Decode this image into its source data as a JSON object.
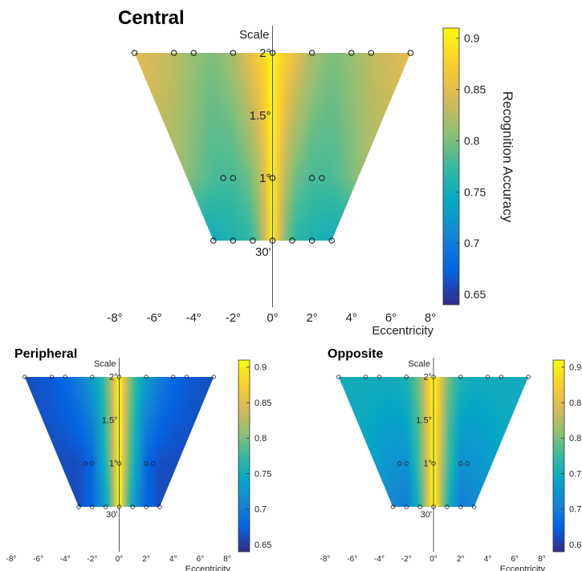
{
  "colors": {
    "colormap": [
      "#352a87",
      "#0363e1",
      "#1485d4",
      "#06a7c6",
      "#38b99e",
      "#92bf73",
      "#d9ba56",
      "#fcce2e",
      "#f9fb0e"
    ],
    "outline_marker": "#222222",
    "axis_line": "#555555"
  },
  "chart_data": [
    {
      "type": "heatmap",
      "title": "Central",
      "xlabel": "Eccentricity",
      "ylabel": "Scale",
      "colorbar_label": "Recognition Accuracy",
      "clim": [
        0.64,
        0.91
      ],
      "colorbar_ticks": [
        "0.65",
        "0.7",
        "0.75",
        "0.8",
        "0.85",
        "0.9"
      ],
      "x_ticks": [
        "-8°",
        "-6°",
        "-4°",
        "-2°",
        "0°",
        "2°",
        "4°",
        "6°",
        "8°"
      ],
      "y_ticks": [
        "30'",
        "1°",
        "1.5°",
        "2°"
      ],
      "xlim": [
        -8,
        8
      ],
      "scale_levels": [
        {
          "label": "2°",
          "points": [
            -7,
            -5,
            -4,
            -2,
            0,
            2,
            4,
            5,
            7
          ]
        },
        {
          "label": "1°",
          "points": [
            -2.5,
            -2,
            0,
            2,
            2.5
          ]
        },
        {
          "label": "30'",
          "points": [
            -3,
            -2,
            -1,
            0,
            1,
            2,
            3
          ]
        }
      ],
      "accuracy_profile": {
        "eccentricity": [
          0,
          0.5,
          1,
          2,
          3,
          4,
          5,
          7
        ],
        "at_2deg": [
          0.91,
          0.88,
          0.86,
          0.82,
          0.8,
          0.81,
          0.83,
          0.85
        ],
        "at_1deg": [
          0.9,
          0.84,
          0.8,
          0.78,
          0.78,
          0.8,
          0.82,
          0.84
        ],
        "at_30min": [
          0.9,
          0.82,
          0.77,
          0.76,
          0.75,
          0.75,
          0.75,
          0.75
        ]
      }
    },
    {
      "type": "heatmap",
      "title": "Peripheral",
      "xlabel": "Eccentricity",
      "ylabel": "Scale",
      "clim": [
        0.64,
        0.91
      ],
      "colorbar_ticks": [
        "0.65",
        "0.7",
        "0.75",
        "0.8",
        "0.85",
        "0.9"
      ],
      "x_ticks": [
        "-8°",
        "-6°",
        "-4°",
        "-2°",
        "0°",
        "2°",
        "4°",
        "6°",
        "8°"
      ],
      "y_ticks": [
        "30'",
        "1°",
        "1.5°",
        "2°"
      ],
      "xlim": [
        -8,
        8
      ],
      "scale_levels": [
        {
          "label": "2°",
          "points": [
            -7,
            -5,
            -4,
            -2,
            0,
            2,
            4,
            5,
            7
          ]
        },
        {
          "label": "1°",
          "points": [
            -2.5,
            -2,
            0,
            2,
            2.5
          ]
        },
        {
          "label": "30'",
          "points": [
            -3,
            -2,
            -1,
            0,
            1,
            2,
            3
          ]
        }
      ],
      "accuracy_profile": {
        "eccentricity": [
          0,
          0.5,
          1,
          2,
          3,
          4,
          5,
          7
        ],
        "at_2deg": [
          0.91,
          0.84,
          0.78,
          0.73,
          0.7,
          0.68,
          0.67,
          0.66
        ],
        "at_1deg": [
          0.91,
          0.82,
          0.76,
          0.68,
          0.66,
          0.66,
          0.66,
          0.66
        ],
        "at_30min": [
          0.91,
          0.8,
          0.73,
          0.68,
          0.66,
          0.66,
          0.66,
          0.66
        ]
      }
    },
    {
      "type": "heatmap",
      "title": "Opposite",
      "xlabel": "Eccentricity",
      "ylabel": "Scale",
      "clim": [
        0.64,
        0.91
      ],
      "colorbar_ticks": [
        "0.65",
        "0.7",
        "0.75",
        "0.8",
        "0.85",
        "0.9"
      ],
      "x_ticks": [
        "-8°",
        "-6°",
        "-4°",
        "-2°",
        "0°",
        "2°",
        "4°",
        "6°",
        "8°"
      ],
      "y_ticks": [
        "30'",
        "1°",
        "1.5°",
        "2°"
      ],
      "xlim": [
        -8,
        8
      ],
      "scale_levels": [
        {
          "label": "2°",
          "points": [
            -7,
            -5,
            -4,
            -2,
            0,
            2,
            4,
            5,
            7
          ]
        },
        {
          "label": "1°",
          "points": [
            -2.5,
            -2,
            0,
            2,
            2.5
          ]
        },
        {
          "label": "30'",
          "points": [
            -3,
            -2,
            -1,
            0,
            1,
            2,
            3
          ]
        }
      ],
      "accuracy_profile": {
        "eccentricity": [
          0,
          0.5,
          1,
          2,
          3,
          4,
          5,
          7
        ],
        "at_2deg": [
          0.91,
          0.86,
          0.8,
          0.76,
          0.75,
          0.75,
          0.75,
          0.75
        ],
        "at_1deg": [
          0.91,
          0.84,
          0.78,
          0.72,
          0.72,
          0.73,
          0.74,
          0.75
        ],
        "at_30min": [
          0.91,
          0.84,
          0.76,
          0.7,
          0.71,
          0.72,
          0.73,
          0.74
        ]
      }
    }
  ]
}
